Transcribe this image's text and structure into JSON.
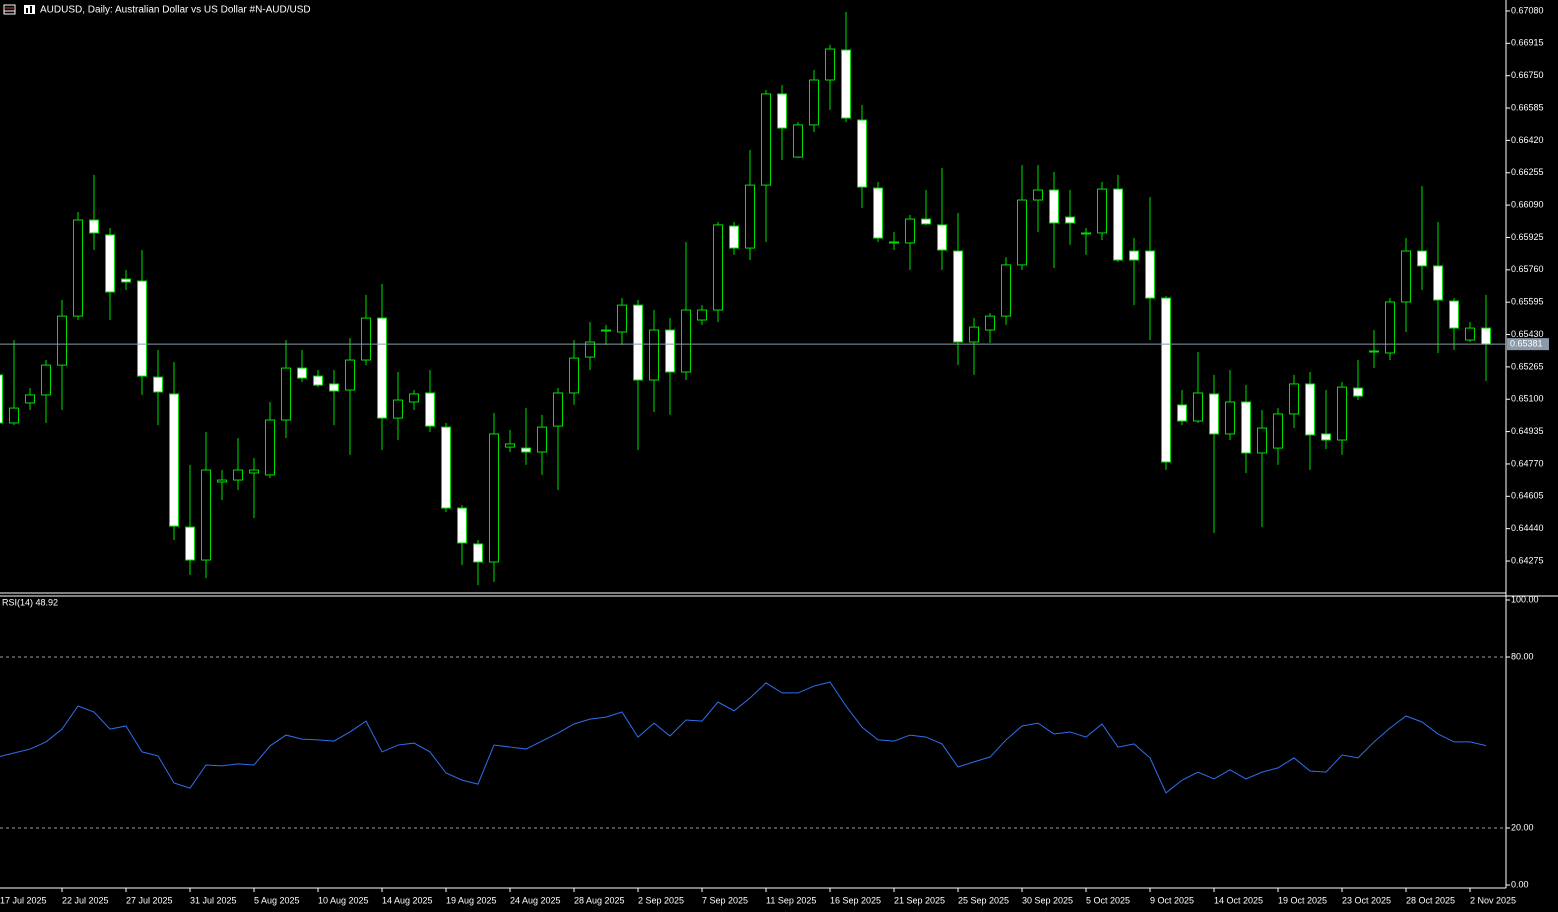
{
  "chart_data": [
    {
      "type": "candlestick",
      "title": "AUDUSD, Daily: Australian Dollar vs US Dollar #N-AUD/USD",
      "ylim": [
        0.64117,
        0.67136
      ],
      "yticks": [
        {
          "value": 0.6708,
          "label": "0.67080"
        },
        0.66915,
        {
          "value": 0.6675,
          "label": "0.66750"
        },
        0.66585,
        {
          "value": 0.6642,
          "label": "0.66420"
        },
        0.66255,
        {
          "value": 0.6609,
          "label": "0.66090"
        },
        0.65925,
        {
          "value": 0.6576,
          "label": "0.65760"
        },
        0.65595,
        {
          "value": 0.6543,
          "label": "0.65430"
        },
        0.65265,
        {
          "value": 0.651,
          "label": "0.65100"
        },
        0.64935,
        {
          "value": 0.6477,
          "label": "0.64770"
        },
        0.64605,
        {
          "value": 0.6444,
          "label": "0.64440"
        },
        0.64275
      ],
      "current_price": 0.65381,
      "wick_color": "#00e000",
      "up_color": "#000000",
      "down_color": "#ffffff",
      "open": [
        0.65224,
        0.64979,
        0.65081,
        0.65122,
        0.65274,
        0.65524,
        0.66014,
        0.65938,
        0.65713,
        0.65703,
        0.65213,
        0.65127,
        0.64448,
        0.6428,
        0.64678,
        0.64688,
        0.64724,
        0.64714,
        0.64994,
        0.65259,
        0.65218,
        0.65178,
        0.65147,
        0.653,
        0.65514,
        0.65004,
        0.65086,
        0.65132,
        0.64958,
        0.64545,
        0.64362,
        0.6427,
        0.64856,
        0.64851,
        0.64831,
        0.64963,
        0.65132,
        0.65315,
        0.65448,
        0.65443,
        0.6558,
        0.65198,
        0.65453,
        0.65239,
        0.65504,
        0.65555,
        0.65983,
        0.65871,
        0.66192,
        0.66657,
        0.66335,
        0.66499,
        0.66728,
        0.66881,
        0.66524,
        0.66177,
        0.65902,
        0.65897,
        0.66019,
        0.65989,
        0.65856,
        0.65392,
        0.65453,
        0.65524,
        0.65785,
        0.66116,
        0.66167,
        0.66029,
        0.65948,
        0.65948,
        0.66172,
        0.65856,
        0.65856,
        0.65616,
        0.65071,
        0.64989,
        0.65127,
        0.64923,
        0.65086,
        0.64826,
        0.64851,
        0.65025,
        0.65178,
        0.64923,
        0.64892,
        0.65157,
        0.65341,
        0.65336,
        0.65596,
        0.65856,
        0.6578,
        0.65601,
        0.65402,
        0.65463
      ],
      "high": [
        0.65274,
        0.65402,
        0.65157,
        0.653,
        0.65606,
        0.66055,
        0.66244,
        0.65973,
        0.65759,
        0.65861,
        0.65351,
        0.6529,
        0.64765,
        0.64933,
        0.64739,
        0.64902,
        0.648,
        0.65086,
        0.65402,
        0.65351,
        0.65249,
        0.65249,
        0.65412,
        0.65632,
        0.65688,
        0.65239,
        0.65147,
        0.65249,
        0.64979,
        0.6456,
        0.64382,
        0.6503,
        0.64943,
        0.65055,
        0.6502,
        0.65157,
        0.65402,
        0.65494,
        0.65479,
        0.65616,
        0.65606,
        0.65555,
        0.65514,
        0.65902,
        0.6558,
        0.66004,
        0.66004,
        0.66371,
        0.66677,
        0.66702,
        0.66514,
        0.66779,
        0.66907,
        0.67075,
        0.66601,
        0.66208,
        0.65953,
        0.6604,
        0.66167,
        0.66279,
        0.6605,
        0.65514,
        0.6554,
        0.65825,
        0.66294,
        0.66294,
        0.66259,
        0.66167,
        0.65973,
        0.66208,
        0.66244,
        0.65922,
        0.66131,
        0.65626,
        0.65147,
        0.65341,
        0.65224,
        0.65249,
        0.65173,
        0.65045,
        0.65055,
        0.65224,
        0.65239,
        0.65147,
        0.65188,
        0.653,
        0.65453,
        0.65616,
        0.65922,
        0.66187,
        0.66004,
        0.65616,
        0.65494,
        0.65632
      ],
      "low": [
        0.64968,
        0.64968,
        0.65045,
        0.64979,
        0.65045,
        0.65504,
        0.65861,
        0.65504,
        0.65657,
        0.65122,
        0.64968,
        0.64382,
        0.64204,
        0.64188,
        0.64586,
        0.64637,
        0.64494,
        0.64698,
        0.64902,
        0.65188,
        0.65162,
        0.64968,
        0.64816,
        0.65274,
        0.64841,
        0.64892,
        0.65045,
        0.64933,
        0.64525,
        0.64254,
        0.64152,
        0.64168,
        0.64831,
        0.64765,
        0.64714,
        0.64637,
        0.65071,
        0.65249,
        0.65377,
        0.65377,
        0.64841,
        0.65035,
        0.6502,
        0.65198,
        0.65479,
        0.65494,
        0.65836,
        0.6581,
        0.65902,
        0.6632,
        0.6633,
        0.66463,
        0.66575,
        0.66514,
        0.66075,
        0.65902,
        0.65861,
        0.65759,
        0.65989,
        0.65759,
        0.65274,
        0.65224,
        0.65387,
        0.65479,
        0.65759,
        0.65953,
        0.65769,
        0.65887,
        0.65836,
        0.65912,
        0.658,
        0.6558,
        0.65402,
        0.64739,
        0.64968,
        0.64979,
        0.64418,
        0.64892,
        0.64724,
        0.64448,
        0.64765,
        0.64953,
        0.64739,
        0.64846,
        0.64816,
        0.65096,
        0.65259,
        0.653,
        0.65443,
        0.65657,
        0.65336,
        0.65351,
        0.65392,
        0.65193
      ],
      "close": [
        0.64979,
        0.65055,
        0.65122,
        0.65274,
        0.65524,
        0.66014,
        0.65948,
        0.65647,
        0.65698,
        0.65218,
        0.65137,
        0.64453,
        0.6428,
        0.64739,
        0.64688,
        0.64739,
        0.64739,
        0.64994,
        0.65259,
        0.65208,
        0.65172,
        0.65142,
        0.653,
        0.65514,
        0.65004,
        0.65096,
        0.65127,
        0.64963,
        0.64545,
        0.64367,
        0.6427,
        0.64923,
        0.64872,
        0.64831,
        0.64958,
        0.65132,
        0.6531,
        0.65392,
        0.65453,
        0.6558,
        0.65198,
        0.65453,
        0.65239,
        0.65555,
        0.65555,
        0.65989,
        0.65871,
        0.66192,
        0.66657,
        0.66483,
        0.66499,
        0.66728,
        0.66886,
        0.66534,
        0.66182,
        0.65922,
        0.65897,
        0.66019,
        0.65994,
        0.65861,
        0.65392,
        0.65468,
        0.65524,
        0.65785,
        0.66116,
        0.66167,
        0.65999,
        0.65999,
        0.65943,
        0.66172,
        0.6581,
        0.6581,
        0.65616,
        0.6478,
        0.64989,
        0.65132,
        0.64923,
        0.65086,
        0.64826,
        0.64953,
        0.65025,
        0.65178,
        0.64918,
        0.64892,
        0.65162,
        0.65116,
        0.65346,
        0.65596,
        0.65856,
        0.6578,
        0.65606,
        0.65463,
        0.65463,
        0.65381
      ]
    },
    {
      "type": "line",
      "title": "RSI(14) 48.92",
      "color": "#2f6ff0",
      "ylim": [
        0,
        100
      ],
      "yticks": [
        {
          "value": 100,
          "label": "100.00"
        },
        {
          "value": 80,
          "label": "80.00"
        },
        {
          "value": 20,
          "label": "20.00"
        },
        {
          "value": 0,
          "label": "0.00"
        }
      ],
      "categories": [
        "17 Jul 2025",
        null,
        null,
        null,
        "22 Jul 2025",
        null,
        null,
        null,
        "27 Jul 2025",
        null,
        null,
        null,
        "31 Jul 2025",
        null,
        null,
        null,
        "5 Aug 2025",
        null,
        null,
        null,
        "10 Aug 2025",
        null,
        null,
        null,
        "14 Aug 2025",
        null,
        null,
        null,
        "19 Aug 2025",
        null,
        null,
        null,
        "24 Aug 2025",
        null,
        null,
        null,
        "28 Aug 2025",
        null,
        null,
        null,
        "2 Sep 2025",
        null,
        null,
        null,
        "7 Sep 2025",
        null,
        null,
        null,
        "11 Sep 2025",
        null,
        null,
        null,
        "16 Sep 2025",
        null,
        null,
        null,
        "21 Sep 2025",
        null,
        null,
        null,
        "25 Sep 2025",
        null,
        null,
        null,
        "30 Sep 2025",
        null,
        null,
        null,
        "5 Oct 2025",
        null,
        null,
        null,
        "9 Oct 2025",
        null,
        null,
        null,
        "14 Oct 2025",
        null,
        null,
        null,
        "19 Oct 2025",
        null,
        null,
        null,
        "23 Oct 2025",
        null,
        null,
        null,
        "28 Oct 2025",
        null,
        null,
        null,
        "2 Nov 2025",
        null
      ],
      "values": [
        44.9,
        46.3,
        47.7,
        50.2,
        54.7,
        62.8,
        60.7,
        54.7,
        55.8,
        46.7,
        45.3,
        35.8,
        34.0,
        42.1,
        41.8,
        42.5,
        42.1,
        48.8,
        52.6,
        51.2,
        50.9,
        50.5,
        53.7,
        57.5,
        46.7,
        49.1,
        49.8,
        46.7,
        39.3,
        36.8,
        35.4,
        49.1,
        48.4,
        47.7,
        50.5,
        53.3,
        56.5,
        58.2,
        58.9,
        60.7,
        51.9,
        56.8,
        52.3,
        57.9,
        57.5,
        64.2,
        61.1,
        65.6,
        70.9,
        67.4,
        67.4,
        69.8,
        71.2,
        62.8,
        55.4,
        50.9,
        50.5,
        52.6,
        51.9,
        49.5,
        41.4,
        43.2,
        44.9,
        50.9,
        55.8,
        56.8,
        53.0,
        53.7,
        51.9,
        56.5,
        48.4,
        49.5,
        44.6,
        32.3,
        36.8,
        39.6,
        37.2,
        40.4,
        37.2,
        39.6,
        41.1,
        44.6,
        40.0,
        39.6,
        45.6,
        44.6,
        50.2,
        55.1,
        59.3,
        57.2,
        53.0,
        50.2,
        50.2,
        48.92
      ]
    }
  ]
}
